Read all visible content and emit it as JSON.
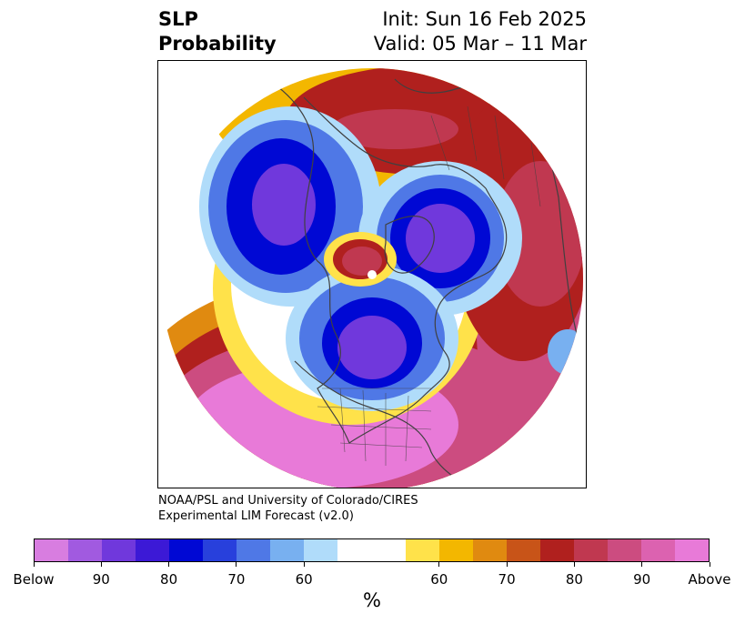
{
  "title": {
    "left_line1": "SLP",
    "left_line2": "Probability",
    "init": "Init: Sun 16 Feb 2025",
    "valid": "Valid: 05 Mar – 11 Mar"
  },
  "credit": {
    "line1": "NOAA/PSL and University of Colorado/CIRES",
    "line2": "Experimental LIM Forecast (v2.0)"
  },
  "colorbar": {
    "unit": "%",
    "colors": [
      "#d87de0",
      "#a15ae0",
      "#7038dc",
      "#3c19d6",
      "#0008d4",
      "#2840dc",
      "#4f78e6",
      "#78b0f0",
      "#b0dcfa",
      "#ffffff",
      "#ffe24a",
      "#f3b700",
      "#e08a10",
      "#c85418",
      "#b0201e",
      "#c03850",
      "#cc4c80",
      "#dc62b0",
      "#e87ad8"
    ],
    "tick_labels": [
      "Below",
      "90",
      "80",
      "70",
      "60",
      "60",
      "70",
      "80",
      "90",
      "Above"
    ]
  },
  "map": {
    "projection": "north-polar-stereographic",
    "colors": {
      "above_strong": "#e87ad8",
      "above_high": "#cc4c80",
      "above_mid": "#b0201e",
      "above_low": "#e08a10",
      "above_weak": "#ffe24a",
      "below_strong": "#7038dc",
      "below_high": "#0008d4",
      "below_mid": "#4f78e6",
      "below_weak": "#b0dcfa",
      "coast": "#404040"
    }
  }
}
